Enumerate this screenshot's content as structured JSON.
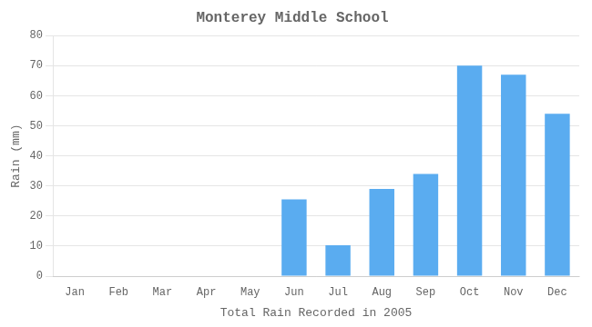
{
  "chart_data": {
    "type": "bar",
    "title": "Monterey Middle School",
    "xlabel": "Total Rain Recorded in 2005",
    "ylabel": "Rain (mm)",
    "categories": [
      "Jan",
      "Feb",
      "Mar",
      "Apr",
      "May",
      "Jun",
      "Jul",
      "Aug",
      "Sep",
      "Oct",
      "Nov",
      "Dec"
    ],
    "values": [
      0,
      0,
      0,
      0,
      0,
      25.5,
      10.3,
      29.0,
      34.0,
      70.0,
      67.0,
      54.0
    ],
    "color": "#5AACF0",
    "ylim": [
      0,
      80
    ],
    "yticks": [
      0,
      10,
      20,
      30,
      40,
      50,
      60,
      70,
      80
    ],
    "grid": true
  }
}
